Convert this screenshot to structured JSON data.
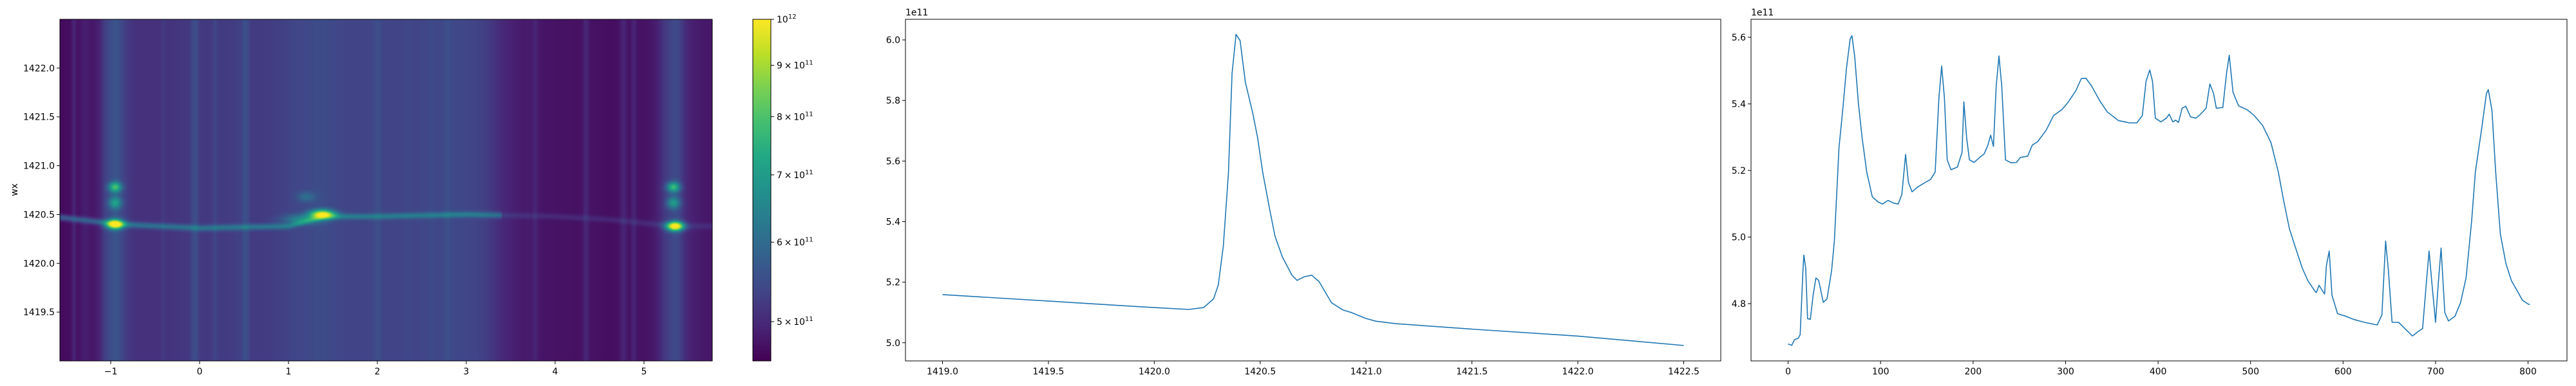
{
  "chart_data": [
    {
      "type": "heatmap",
      "ylabel": "wx",
      "colormap": "viridis",
      "xlim": [
        -1.572,
        5.768
      ],
      "ylim": [
        1419.0,
        1422.5
      ],
      "xticks": [
        -1,
        0,
        1,
        2,
        3,
        4,
        5
      ],
      "xtick_labels": [
        "−1",
        "0",
        "1",
        "2",
        "3",
        "4",
        "5"
      ],
      "yticks": [
        1419.5,
        1420.0,
        1420.5,
        1421.0,
        1421.5,
        1422.0
      ],
      "ytick_labels": [
        "1419.5",
        "1420.0",
        "1420.5",
        "1421.0",
        "1421.5",
        "1422.0"
      ],
      "ridge_line_wx": 1420.4,
      "hotspots": [
        {
          "x": -0.95,
          "wx": 1420.4
        },
        {
          "x": 1.38,
          "wx": 1420.5
        },
        {
          "x": 5.35,
          "wx": 1420.38
        }
      ],
      "colorbar": {
        "scale": "log",
        "range": [
          457000000000.0,
          1000000000000.0
        ],
        "ticks": [
          1000000000000.0,
          900000000000.0,
          800000000000.0,
          700000000000.0,
          600000000000.0,
          500000000000.0
        ],
        "tick_labels": [
          {
            "mant": "",
            "base": "10",
            "exp": "12"
          },
          {
            "mant": "9 × 10",
            "base": "",
            "exp": "11"
          },
          {
            "mant": "8 × 10",
            "base": "",
            "exp": "11"
          },
          {
            "mant": "7 × 10",
            "base": "",
            "exp": "11"
          },
          {
            "mant": "6 × 10",
            "base": "",
            "exp": "11"
          },
          {
            "mant": "5 × 10",
            "base": "",
            "exp": "11"
          }
        ]
      }
    },
    {
      "type": "line",
      "offset_text": "1e11",
      "color": "#1f77b4",
      "xlim": [
        1418.825,
        1422.675
      ],
      "ylim": [
        4.94,
        6.068
      ],
      "xticks": [
        1419.0,
        1419.5,
        1420.0,
        1420.5,
        1421.0,
        1421.5,
        1422.0,
        1422.5
      ],
      "xtick_labels": [
        "1419.0",
        "1419.5",
        "1420.0",
        "1420.5",
        "1421.0",
        "1421.5",
        "1422.0",
        "1422.5"
      ],
      "yticks": [
        5.0,
        5.2,
        5.4,
        5.6,
        5.8,
        6.0
      ],
      "ytick_labels": [
        "5.0",
        "5.2",
        "5.4",
        "5.6",
        "5.8",
        "6.0"
      ],
      "x": [
        1419.0,
        1420.0,
        1420.163,
        1420.233,
        1420.28,
        1420.302,
        1420.326,
        1420.35,
        1420.367,
        1420.386,
        1420.405,
        1420.43,
        1420.465,
        1420.488,
        1420.512,
        1420.547,
        1420.57,
        1420.605,
        1420.651,
        1420.674,
        1420.709,
        1420.744,
        1420.779,
        1420.837,
        1420.891,
        1420.93,
        1421.0,
        1421.047,
        1421.14,
        1421.5,
        1422.0,
        1422.5
      ],
      "y": [
        5.159,
        5.116,
        5.11,
        5.116,
        5.145,
        5.19,
        5.32,
        5.56,
        5.888,
        6.018,
        5.998,
        5.86,
        5.758,
        5.677,
        5.563,
        5.433,
        5.352,
        5.283,
        5.222,
        5.206,
        5.218,
        5.223,
        5.201,
        5.132,
        5.108,
        5.1,
        5.08,
        5.071,
        5.063,
        5.045,
        5.022,
        4.991
      ]
    },
    {
      "type": "line",
      "offset_text": "1e11",
      "color": "#1f77b4",
      "xlim": [
        -40.1,
        842.1
      ],
      "ylim": [
        4.628,
        5.654
      ],
      "xticks": [
        0,
        100,
        200,
        300,
        400,
        500,
        600,
        700,
        800
      ],
      "xtick_labels": [
        "0",
        "100",
        "200",
        "300",
        "400",
        "500",
        "600",
        "700",
        "800"
      ],
      "yticks": [
        4.8,
        5.0,
        5.2,
        5.4,
        5.6
      ],
      "ytick_labels": [
        "4.8",
        "5.0",
        "5.2",
        "5.4",
        "5.6"
      ],
      "x": [
        0,
        4,
        7,
        11,
        13,
        16,
        17,
        19,
        21,
        24,
        27,
        30,
        33,
        38,
        42,
        47,
        50,
        55,
        59,
        63,
        67,
        69,
        72,
        76,
        80,
        85,
        91,
        97,
        102,
        108,
        114,
        119,
        123,
        127,
        130,
        134,
        140,
        147,
        154,
        159,
        163,
        166,
        169,
        172,
        176,
        183,
        188,
        190,
        193,
        196,
        201,
        207,
        212,
        216,
        219,
        222,
        225,
        228,
        231,
        235,
        241,
        247,
        251,
        259,
        264,
        270,
        279,
        287,
        296,
        302,
        311,
        317,
        322,
        328,
        337,
        345,
        357,
        369,
        377,
        383,
        387,
        391,
        394,
        397,
        403,
        409,
        412,
        416,
        419,
        422,
        426,
        430,
        435,
        441,
        446,
        452,
        456,
        460,
        463,
        470,
        474,
        477,
        481,
        487,
        496,
        504,
        513,
        522,
        530,
        536,
        542,
        548,
        556,
        562,
        568,
        571,
        574,
        580,
        582,
        585,
        588,
        594,
        603,
        611,
        623,
        637,
        642,
        646,
        649,
        653,
        660,
        668,
        675,
        681,
        686,
        690,
        693,
        696,
        700,
        703,
        706,
        710,
        714,
        721,
        727,
        733,
        739,
        743,
        750,
        755,
        757,
        761,
        765,
        770,
        776,
        782,
        788,
        794,
        800,
        802
      ],
      "y": [
        4.679,
        4.675,
        4.692,
        4.696,
        4.707,
        4.899,
        4.946,
        4.906,
        4.755,
        4.753,
        4.825,
        4.877,
        4.87,
        4.804,
        4.814,
        4.899,
        4.988,
        5.269,
        5.38,
        5.505,
        5.594,
        5.605,
        5.542,
        5.402,
        5.298,
        5.195,
        5.121,
        5.106,
        5.099,
        5.11,
        5.102,
        5.099,
        5.128,
        5.248,
        5.165,
        5.136,
        5.15,
        5.162,
        5.173,
        5.195,
        5.417,
        5.514,
        5.417,
        5.232,
        5.202,
        5.21,
        5.254,
        5.406,
        5.298,
        5.232,
        5.224,
        5.239,
        5.25,
        5.276,
        5.306,
        5.272,
        5.454,
        5.544,
        5.454,
        5.232,
        5.223,
        5.224,
        5.239,
        5.243,
        5.276,
        5.287,
        5.321,
        5.365,
        5.383,
        5.402,
        5.439,
        5.476,
        5.477,
        5.454,
        5.409,
        5.376,
        5.35,
        5.343,
        5.343,
        5.365,
        5.468,
        5.502,
        5.468,
        5.357,
        5.346,
        5.357,
        5.369,
        5.346,
        5.351,
        5.344,
        5.387,
        5.393,
        5.361,
        5.357,
        5.369,
        5.387,
        5.46,
        5.431,
        5.387,
        5.389,
        5.491,
        5.546,
        5.435,
        5.394,
        5.383,
        5.365,
        5.335,
        5.284,
        5.195,
        5.106,
        5.025,
        4.973,
        4.906,
        4.869,
        4.844,
        4.833,
        4.855,
        4.829,
        4.914,
        4.958,
        4.825,
        4.77,
        4.762,
        4.753,
        4.744,
        4.736,
        4.766,
        4.988,
        4.899,
        4.744,
        4.744,
        4.722,
        4.703,
        4.716,
        4.725,
        4.862,
        4.958,
        4.862,
        4.744,
        4.862,
        4.967,
        4.773,
        4.748,
        4.762,
        4.803,
        4.877,
        5.047,
        5.195,
        5.328,
        5.431,
        5.443,
        5.38,
        5.195,
        5.01,
        4.921,
        4.869,
        4.84,
        4.81,
        4.799,
        4.797
      ]
    }
  ]
}
